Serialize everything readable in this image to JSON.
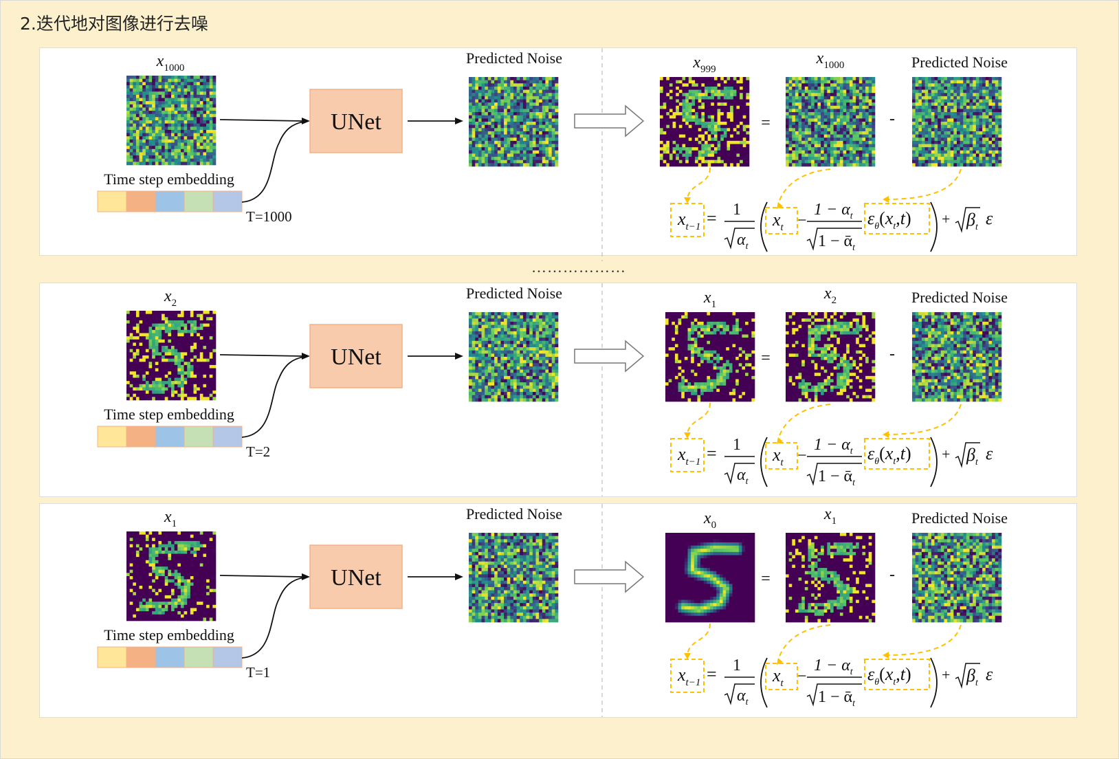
{
  "title": "2.迭代地对图像进行去噪",
  "separator": "………………",
  "colors": {
    "background": "#fdf1cd",
    "unet_fill": "#f8cbad",
    "unet_border": "#f4b183",
    "dashed_highlight": "#ffc000",
    "viridis_dark": "#440154",
    "viridis_blue": "#31688e",
    "viridis_teal": "#21918c",
    "viridis_green": "#5ec962",
    "viridis_yellow": "#fde725",
    "embedding_cells": [
      "#ffe699",
      "#f4b183",
      "#9dc3e6",
      "#c5e0b4",
      "#b4c7e7"
    ]
  },
  "icons": [
    "right-arrow-icon",
    "hollow-arrow-icon",
    "curved-arrow-icon",
    "dashed-arrow-icon"
  ],
  "common": {
    "unet_label": "UNet",
    "predicted_noise_label": "Predicted Noise",
    "embedding_label": "Time step embedding",
    "equals": "=",
    "minus": "-"
  },
  "panels": [
    {
      "input": {
        "base": "x",
        "sub": "1000"
      },
      "t_label": "T=1000",
      "output": {
        "base": "x",
        "sub": "999"
      },
      "previous": {
        "base": "x",
        "sub": "1000"
      },
      "input_digit": 0.3,
      "output_digit": 0.5
    },
    {
      "input": {
        "base": "x",
        "sub": "2"
      },
      "t_label": "T=2",
      "output": {
        "base": "x",
        "sub": "1"
      },
      "previous": {
        "base": "x",
        "sub": "2"
      },
      "input_digit": 0.55,
      "output_digit": 0.75
    },
    {
      "input": {
        "base": "x",
        "sub": "1"
      },
      "t_label": "T=1",
      "output": {
        "base": "x",
        "sub": "0"
      },
      "previous": {
        "base": "x",
        "sub": "1"
      },
      "input_digit": 0.75,
      "output_digit": 1
    }
  ]
}
